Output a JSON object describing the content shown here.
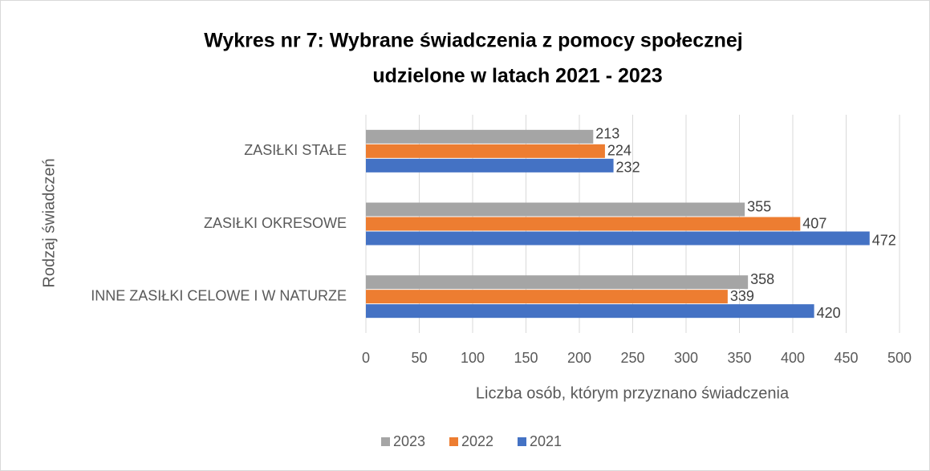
{
  "chart_data": {
    "type": "barh",
    "title": [
      "Wykres nr 7: Wybrane świadczenia z pomocy społecznej",
      "udzielone w latach 2021 - 2023"
    ],
    "xlabel": "Liczba osób, którym przyznano świadczenia",
    "ylabel": "Rodzaj świadczeń",
    "categories": [
      "ZASIŁKI STAŁE",
      "ZASIŁKI OKRESOWE",
      "INNE ZASIŁKI CELOWE I W NATURZE"
    ],
    "series": [
      {
        "name": "2023",
        "color": "#a5a5a5",
        "values": [
          213,
          355,
          358
        ]
      },
      {
        "name": "2022",
        "color": "#ed7d31",
        "values": [
          224,
          407,
          339
        ]
      },
      {
        "name": "2021",
        "color": "#4472c4",
        "values": [
          232,
          472,
          420
        ]
      }
    ],
    "xlim": [
      0,
      500
    ],
    "xticks": [
      0,
      50,
      100,
      150,
      200,
      250,
      300,
      350,
      400,
      450,
      500
    ],
    "grid": true,
    "legend": "bottom"
  }
}
